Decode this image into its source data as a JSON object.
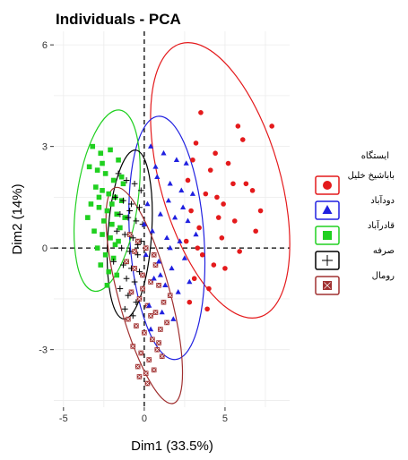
{
  "chart_data": {
    "type": "scatter",
    "title": "Individuals - PCA",
    "xlabel": "Dim1 (33.5%)",
    "ylabel": "Dim2 (14%)",
    "xlim": [
      -5.6,
      9.0
    ],
    "ylim": [
      -4.7,
      6.4
    ],
    "x_ticks": [
      -5,
      0,
      5
    ],
    "y_ticks": [
      -3,
      0,
      3,
      6
    ],
    "grid": true,
    "legend_position": "right",
    "legend_title": "ایستگاه",
    "reference_lines": {
      "x": 0,
      "y": 0,
      "style": "dashed"
    },
    "series": [
      {
        "name": "باباشیخ خلیل",
        "marker": "circle",
        "color": "#e41a1c",
        "ellipse": {
          "center": [
            4.7,
            2.0
          ],
          "radii": [
            3.7,
            4.2
          ],
          "rotation_deg": -16
        },
        "x": [
          3.5,
          5.8,
          6.1,
          7.9,
          3.2,
          4.4,
          5.2,
          3.0,
          4.1,
          5.5,
          6.7,
          7.2,
          2.7,
          3.8,
          4.9,
          6.3,
          2.9,
          4.6,
          5.6,
          3.4,
          4.8,
          6.9,
          3.6,
          4.3,
          5.9,
          3.1,
          4.0,
          2.8,
          5.0,
          3.3,
          4.5,
          2.6,
          3.9
        ],
        "y": [
          4.0,
          3.6,
          3.2,
          3.6,
          3.1,
          2.8,
          2.5,
          2.6,
          2.3,
          1.9,
          1.7,
          1.1,
          2.0,
          1.6,
          1.3,
          1.9,
          1.1,
          0.9,
          0.8,
          0.6,
          0.3,
          0.5,
          -0.2,
          -0.5,
          -0.1,
          -0.9,
          -1.2,
          -1.6,
          -0.6,
          0.0,
          1.5,
          0.2,
          -1.8
        ]
      },
      {
        "name": "دودآباد",
        "marker": "triangle",
        "color": "#2020e0",
        "ellipse": {
          "center": [
            1.4,
            0.3
          ],
          "radii": [
            2.3,
            3.6
          ],
          "rotation_deg": -4
        },
        "x": [
          0.4,
          1.2,
          2.0,
          2.6,
          0.8,
          1.6,
          2.3,
          3.0,
          0.2,
          1.0,
          1.9,
          2.7,
          0.5,
          1.4,
          2.2,
          3.2,
          0.1,
          0.9,
          1.7,
          2.5,
          0.6,
          1.3,
          2.1,
          0.3,
          1.1,
          1.8,
          0.7,
          1.5,
          2.4,
          0.0,
          1.0,
          2.8,
          1.6,
          0.4
        ],
        "y": [
          3.0,
          2.8,
          2.6,
          2.5,
          2.1,
          1.9,
          1.7,
          1.6,
          1.3,
          1.0,
          0.9,
          0.8,
          0.5,
          0.3,
          0.2,
          0.4,
          -0.2,
          -0.4,
          -0.6,
          -0.3,
          -0.9,
          -1.1,
          -1.3,
          -1.7,
          -1.9,
          -2.1,
          2.4,
          1.4,
          1.2,
          0.7,
          -0.8,
          -1.0,
          0.0,
          -2.4
        ]
      },
      {
        "name": "قادرآباد",
        "marker": "square",
        "color": "#20d020",
        "ellipse": {
          "center": [
            -2.3,
            1.4
          ],
          "radii": [
            1.9,
            2.7
          ],
          "rotation_deg": 8
        },
        "x": [
          -3.2,
          -2.7,
          -2.1,
          -1.6,
          -3.4,
          -2.9,
          -2.4,
          -1.9,
          -1.3,
          -3.0,
          -2.6,
          -2.2,
          -1.8,
          -1.4,
          -3.3,
          -2.8,
          -2.3,
          -1.7,
          -1.2,
          -2.5,
          -2.0,
          -1.5,
          -3.1,
          -2.6,
          -2.1,
          -1.6,
          -2.9,
          -2.4,
          -1.9,
          -1.1,
          -2.7,
          -2.2,
          -1.7,
          -3.5,
          -2.0,
          -1.4,
          -2.8,
          -2.3,
          -1.8,
          -2.6
        ],
        "y": [
          3.0,
          2.8,
          2.9,
          2.6,
          2.4,
          2.3,
          2.2,
          2.0,
          1.9,
          1.8,
          1.7,
          1.6,
          1.5,
          1.4,
          1.3,
          1.2,
          1.1,
          1.0,
          0.9,
          0.8,
          0.7,
          0.6,
          0.5,
          0.4,
          0.3,
          0.2,
          0.0,
          -0.2,
          -0.3,
          -0.4,
          -0.5,
          -0.7,
          -0.8,
          0.9,
          1.3,
          2.1,
          1.5,
          -1.1,
          0.1,
          2.5
        ]
      },
      {
        "name": "صرفه",
        "marker": "plus",
        "color": "#000000",
        "ellipse": {
          "center": [
            -0.9,
            0.4
          ],
          "radii": [
            1.35,
            2.5
          ],
          "rotation_deg": 4
        },
        "x": [
          -1.6,
          -1.1,
          -0.6,
          -0.2,
          -1.8,
          -1.3,
          -0.8,
          -0.3,
          -1.5,
          -1.0,
          -0.5,
          -0.1,
          -1.7,
          -1.2,
          -0.7,
          -0.2,
          -1.4,
          -0.9,
          -0.4,
          -1.9,
          -1.3,
          -0.8,
          -0.3,
          -1.1,
          -0.6,
          -1.5,
          -1.0,
          -0.5,
          -1.2,
          -0.7,
          -0.9,
          -0.4
        ],
        "y": [
          2.2,
          2.0,
          1.9,
          1.7,
          1.5,
          1.4,
          1.3,
          1.2,
          1.0,
          0.9,
          0.8,
          0.7,
          0.5,
          0.4,
          0.3,
          0.2,
          0.0,
          -0.1,
          -0.2,
          -0.4,
          -0.5,
          -0.6,
          -0.7,
          -0.9,
          -1.0,
          -1.2,
          -1.4,
          -1.6,
          -1.8,
          -2.0,
          1.1,
          0.1
        ]
      },
      {
        "name": "رومال",
        "marker": "square-x",
        "color": "#a03030",
        "ellipse": {
          "center": [
            0.0,
            -1.4
          ],
          "radii": [
            1.6,
            3.3
          ],
          "rotation_deg": -15
        },
        "x": [
          -0.9,
          -0.4,
          0.1,
          0.6,
          -1.1,
          -0.6,
          -0.1,
          0.4,
          0.9,
          -0.8,
          -0.3,
          0.2,
          0.7,
          1.2,
          -1.0,
          -0.5,
          0.0,
          0.5,
          1.0,
          -0.7,
          -0.2,
          0.3,
          0.8,
          -0.4,
          0.1,
          0.6,
          1.4,
          -0.6,
          -0.1,
          0.4,
          0.9,
          1.6,
          0.2,
          -0.3,
          0.7,
          1.1
        ],
        "y": [
          0.4,
          0.2,
          0.0,
          -0.2,
          -0.4,
          -0.6,
          -0.8,
          -1.0,
          -1.1,
          -1.3,
          -1.5,
          -1.7,
          -1.9,
          -1.6,
          -2.1,
          -2.3,
          -2.5,
          -2.7,
          -2.4,
          -2.9,
          -3.1,
          -3.3,
          -3.0,
          -3.5,
          -3.7,
          -3.6,
          -2.2,
          -0.1,
          -1.2,
          -2.0,
          -2.8,
          -1.4,
          -4.0,
          -3.8,
          -0.5,
          -3.2
        ]
      }
    ]
  }
}
